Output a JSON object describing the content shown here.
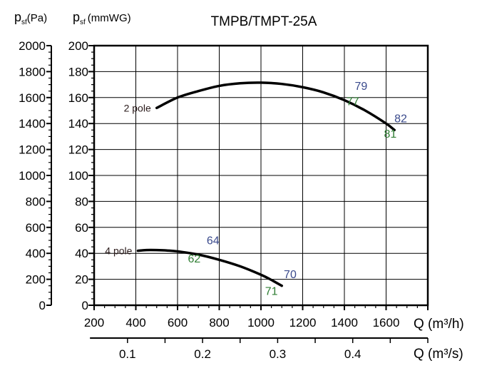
{
  "chart_data": {
    "type": "line",
    "title": "TMPB/TMPT-25A",
    "y_left_label": {
      "main": "p",
      "sub": "sf",
      "unit": "(Pa)"
    },
    "y_right_label": {
      "main": "p",
      "sub": "sf",
      "unit": "(mmWG)"
    },
    "xlabel": "Q (m³/h)",
    "x2label": "Q (m³/s)",
    "xlim": [
      200,
      1800
    ],
    "ylim": [
      0,
      200
    ],
    "ylim_pa": [
      0,
      2000
    ],
    "x_ticks": [
      "200",
      "400",
      "600",
      "800",
      "1000",
      "1200",
      "1400",
      "1600"
    ],
    "y_ticks": [
      "0",
      "20",
      "40",
      "60",
      "80",
      "100",
      "120",
      "140",
      "160",
      "180",
      "200"
    ],
    "y_pa_ticks": [
      "0",
      "200",
      "400",
      "600",
      "800",
      "1000",
      "1200",
      "1400",
      "1600",
      "1800",
      "2000"
    ],
    "x2_ticks": [
      "0.1",
      "0.2",
      "0.3",
      "0.4"
    ],
    "grid": true,
    "series": [
      {
        "name": "2 pole",
        "x": [
          500,
          600,
          700,
          800,
          900,
          1000,
          1100,
          1200,
          1300,
          1400,
          1500,
          1600,
          1640
        ],
        "y": [
          152,
          160,
          165,
          169,
          171,
          171.5,
          170.5,
          168,
          164,
          158,
          150,
          140,
          135
        ]
      },
      {
        "name": "4 pole",
        "x": [
          410,
          450,
          500,
          550,
          600,
          700,
          800,
          900,
          1000,
          1050,
          1100
        ],
        "y": [
          42,
          42.5,
          42.5,
          42.2,
          41.5,
          39,
          35,
          30,
          23.5,
          19.5,
          15
        ]
      }
    ],
    "annotations": [
      {
        "text": "79",
        "x": 1480,
        "y": 166,
        "color": "#3a4a8c"
      },
      {
        "text": "77",
        "x": 1440,
        "y": 154,
        "color": "#2e7d32"
      },
      {
        "text": "82",
        "x": 1670,
        "y": 141,
        "color": "#3a4a8c"
      },
      {
        "text": "81",
        "x": 1620,
        "y": 129,
        "color": "#2e7d32"
      },
      {
        "text": "64",
        "x": 770,
        "y": 47,
        "color": "#3a4a8c"
      },
      {
        "text": "62",
        "x": 680,
        "y": 33,
        "color": "#2e7d32"
      },
      {
        "text": "70",
        "x": 1140,
        "y": 21,
        "color": "#3a4a8c"
      },
      {
        "text": "71",
        "x": 1050,
        "y": 8,
        "color": "#2e7d32"
      }
    ]
  }
}
